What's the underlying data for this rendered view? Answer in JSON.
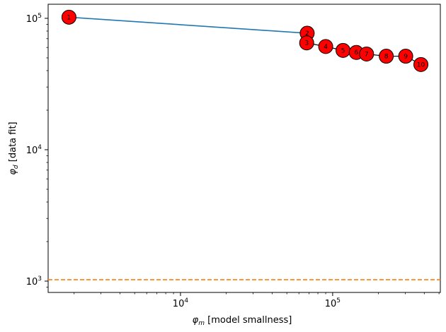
{
  "chart_data": {
    "type": "line",
    "xlabel_symbol": "φ",
    "xlabel_sub": "m",
    "xlabel_text": " [model smallness]",
    "ylabel_symbol": "φ",
    "ylabel_sub": "d",
    "ylabel_text": " [data fit]",
    "xscale": "log",
    "yscale": "log",
    "xlim": [
      1350,
      510000
    ],
    "ylim": [
      820,
      128000
    ],
    "x_ticks": [
      {
        "value": 10000,
        "base": "10",
        "exp": "4"
      },
      {
        "value": 100000,
        "base": "10",
        "exp": "5"
      }
    ],
    "y_ticks": [
      {
        "value": 1000,
        "base": "10",
        "exp": "3"
      },
      {
        "value": 10000,
        "base": "10",
        "exp": "4"
      },
      {
        "value": 100000,
        "base": "10",
        "exp": "5"
      }
    ],
    "grid": false,
    "series": [
      {
        "color": "#1f77b4",
        "markers": false,
        "x": [
          1850,
          68000
        ],
        "y": [
          102000,
          77000
        ]
      },
      {
        "color": "#000000",
        "markers": true,
        "marker_color": "#ff0000",
        "points": [
          {
            "label": "2",
            "x": 68000,
            "y": 77000
          },
          {
            "label": "3",
            "x": 67500,
            "y": 65000
          },
          {
            "label": "4",
            "x": 90000,
            "y": 61000
          },
          {
            "label": "5",
            "x": 117000,
            "y": 57000
          },
          {
            "label": "6",
            "x": 143000,
            "y": 55000
          },
          {
            "label": "7",
            "x": 167000,
            "y": 53500
          },
          {
            "label": "8",
            "x": 225000,
            "y": 51500
          },
          {
            "label": "9",
            "x": 302000,
            "y": 51500
          },
          {
            "label": "10",
            "x": 380000,
            "y": 44500
          }
        ]
      }
    ],
    "start_marker": {
      "label": "1",
      "x": 1850,
      "y": 102000,
      "color": "#ff0000"
    },
    "target_line": {
      "y": 1025,
      "color": "#ff7f0e",
      "style": "dashed"
    }
  }
}
